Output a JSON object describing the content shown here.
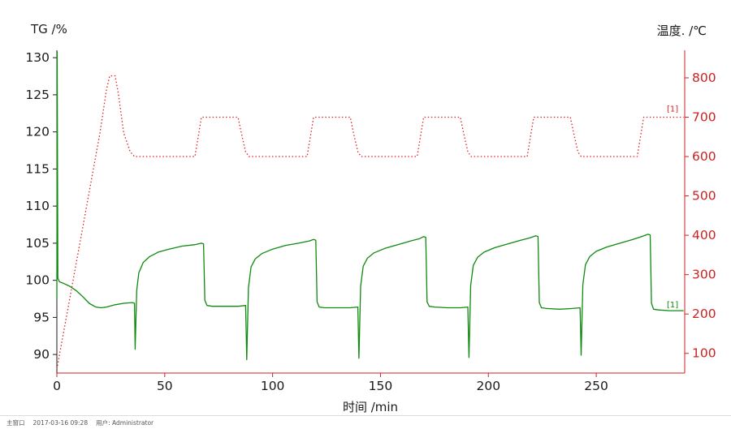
{
  "footer": {
    "window_label": "主窗口",
    "datetime": "2017-03-16 09:28",
    "user": "用户: Administrator"
  },
  "chart_data": {
    "type": "line",
    "xlabel": "时间 /min",
    "xlim": [
      0,
      291
    ],
    "x_ticks": [
      0,
      50,
      100,
      150,
      200,
      250
    ],
    "x_axis": {
      "color": "#cc2222",
      "tick_label_color": "#1a1a1a"
    },
    "left_axis": {
      "label": "TG /%",
      "ticks": [
        90,
        95,
        100,
        105,
        110,
        115,
        120,
        125,
        130
      ],
      "lim": [
        87.5,
        131
      ],
      "color": "#1a1a1a"
    },
    "right_axis": {
      "label": "温度. /℃",
      "ticks": [
        100,
        200,
        300,
        400,
        500,
        600,
        700,
        800
      ],
      "lim": [
        50,
        870
      ],
      "color": "#cc2222"
    },
    "series": [
      {
        "name": "TG",
        "axis": "left",
        "color": "#0e8a0e",
        "style": "solid",
        "end_label": "[1]",
        "points": [
          [
            0,
            97.4
          ],
          [
            0.15,
            130.8
          ],
          [
            0.45,
            100.3
          ],
          [
            1.2,
            99.8
          ],
          [
            3,
            99.6
          ],
          [
            6,
            99.2
          ],
          [
            9,
            98.6
          ],
          [
            12,
            97.8
          ],
          [
            15,
            96.9
          ],
          [
            18,
            96.4
          ],
          [
            20.5,
            96.3
          ],
          [
            23,
            96.4
          ],
          [
            27,
            96.7
          ],
          [
            31,
            96.9
          ],
          [
            35,
            97.0
          ],
          [
            36,
            96.9
          ],
          [
            36.3,
            90.7
          ],
          [
            37,
            98.6
          ],
          [
            38,
            101.0
          ],
          [
            40,
            102.4
          ],
          [
            43,
            103.2
          ],
          [
            47,
            103.8
          ],
          [
            52,
            104.2
          ],
          [
            58,
            104.6
          ],
          [
            64,
            104.8
          ],
          [
            67,
            105.0
          ],
          [
            68,
            104.9
          ],
          [
            68.6,
            97.3
          ],
          [
            69.6,
            96.6
          ],
          [
            72,
            96.5
          ],
          [
            78,
            96.5
          ],
          [
            84,
            96.5
          ],
          [
            87.5,
            96.6
          ],
          [
            88,
            89.3
          ],
          [
            88.8,
            99.0
          ],
          [
            90,
            101.8
          ],
          [
            92,
            102.9
          ],
          [
            95,
            103.6
          ],
          [
            100,
            104.2
          ],
          [
            106,
            104.7
          ],
          [
            112,
            105.0
          ],
          [
            117,
            105.3
          ],
          [
            119,
            105.5
          ],
          [
            120,
            105.4
          ],
          [
            120.6,
            97.1
          ],
          [
            121.6,
            96.4
          ],
          [
            124,
            96.3
          ],
          [
            130,
            96.3
          ],
          [
            136,
            96.3
          ],
          [
            139.5,
            96.4
          ],
          [
            140,
            89.5
          ],
          [
            140.8,
            99.2
          ],
          [
            142,
            101.9
          ],
          [
            144,
            103.0
          ],
          [
            147,
            103.7
          ],
          [
            152,
            104.3
          ],
          [
            158,
            104.8
          ],
          [
            164,
            105.3
          ],
          [
            168,
            105.6
          ],
          [
            170,
            105.9
          ],
          [
            171,
            105.8
          ],
          [
            171.6,
            97.1
          ],
          [
            172.6,
            96.5
          ],
          [
            175,
            96.4
          ],
          [
            181,
            96.3
          ],
          [
            187,
            96.3
          ],
          [
            190.5,
            96.4
          ],
          [
            191,
            89.6
          ],
          [
            191.8,
            99.3
          ],
          [
            193,
            102.0
          ],
          [
            195,
            103.1
          ],
          [
            198,
            103.8
          ],
          [
            203,
            104.4
          ],
          [
            209,
            104.9
          ],
          [
            215,
            105.4
          ],
          [
            219,
            105.7
          ],
          [
            222,
            106.0
          ],
          [
            223,
            105.9
          ],
          [
            223.6,
            97.0
          ],
          [
            224.6,
            96.3
          ],
          [
            227,
            96.2
          ],
          [
            233,
            96.1
          ],
          [
            239,
            96.2
          ],
          [
            242.5,
            96.3
          ],
          [
            243,
            89.9
          ],
          [
            243.8,
            99.4
          ],
          [
            245,
            102.1
          ],
          [
            247,
            103.2
          ],
          [
            250,
            103.9
          ],
          [
            255,
            104.5
          ],
          [
            261,
            105.0
          ],
          [
            267,
            105.5
          ],
          [
            271,
            105.9
          ],
          [
            274,
            106.2
          ],
          [
            275,
            106.1
          ],
          [
            275.6,
            96.9
          ],
          [
            276.6,
            96.1
          ],
          [
            279,
            96.0
          ],
          [
            284,
            95.9
          ],
          [
            288,
            95.9
          ],
          [
            290.5,
            95.9
          ]
        ]
      },
      {
        "name": "温度",
        "axis": "right",
        "color": "#dd2222",
        "style": "dotted",
        "end_label": "[1]",
        "points": [
          [
            0,
            60
          ],
          [
            5,
            210
          ],
          [
            10,
            360
          ],
          [
            15,
            510
          ],
          [
            20,
            660
          ],
          [
            23,
            770
          ],
          [
            24.5,
            805
          ],
          [
            27,
            805
          ],
          [
            28.5,
            760
          ],
          [
            31,
            660
          ],
          [
            34,
            612
          ],
          [
            36,
            600
          ],
          [
            45,
            600
          ],
          [
            56,
            600
          ],
          [
            64,
            600
          ],
          [
            65.5,
            650
          ],
          [
            67,
            700
          ],
          [
            76,
            700
          ],
          [
            84,
            700
          ],
          [
            85.5,
            660
          ],
          [
            87.5,
            612
          ],
          [
            89,
            600
          ],
          [
            99,
            600
          ],
          [
            109,
            600
          ],
          [
            116,
            600
          ],
          [
            117.5,
            650
          ],
          [
            119,
            700
          ],
          [
            128,
            700
          ],
          [
            136,
            700
          ],
          [
            137.5,
            660
          ],
          [
            139.5,
            612
          ],
          [
            141,
            600
          ],
          [
            151,
            600
          ],
          [
            161,
            600
          ],
          [
            167,
            600
          ],
          [
            168.5,
            650
          ],
          [
            170,
            700
          ],
          [
            179,
            700
          ],
          [
            187,
            700
          ],
          [
            188.5,
            660
          ],
          [
            190.5,
            612
          ],
          [
            192,
            600
          ],
          [
            202,
            600
          ],
          [
            212,
            600
          ],
          [
            218,
            600
          ],
          [
            219.5,
            650
          ],
          [
            221,
            700
          ],
          [
            230,
            700
          ],
          [
            238,
            700
          ],
          [
            239.5,
            660
          ],
          [
            241.5,
            612
          ],
          [
            243,
            600
          ],
          [
            253,
            600
          ],
          [
            263,
            600
          ],
          [
            269,
            600
          ],
          [
            270.5,
            650
          ],
          [
            272,
            700
          ],
          [
            281,
            700
          ],
          [
            290.5,
            700
          ]
        ]
      }
    ]
  }
}
